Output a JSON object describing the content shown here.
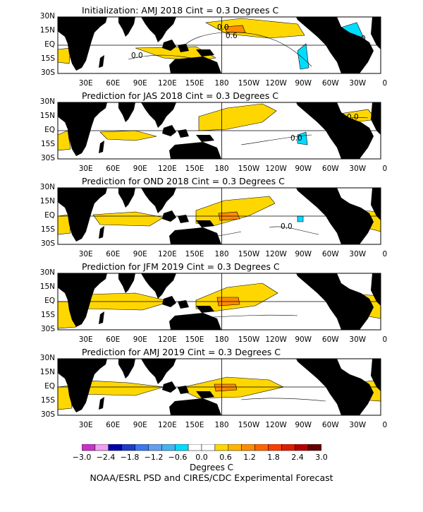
{
  "panels": [
    {
      "title": "Initialization: AMJ 2018  Cint = 0.3 Degrees C",
      "contour_labels": [
        "0.0",
        "0.0",
        "0.6",
        "0.0",
        "0.0"
      ]
    },
    {
      "title": "Prediction for JAS 2018  Cint = 0.3 Degrees C",
      "contour_labels": [
        "0.0",
        "0.0"
      ]
    },
    {
      "title": "Prediction for OND 2018  Cint = 0.3 Degrees C",
      "contour_labels": [
        "0.0"
      ]
    },
    {
      "title": "Prediction for JFM 2019  Cint = 0.3 Degrees C",
      "contour_labels": []
    },
    {
      "title": "Prediction for AMJ 2019  Cint = 0.3 Degrees C",
      "contour_labels": []
    }
  ],
  "lat_labels": [
    "30N",
    "15N",
    "EQ",
    "15S",
    "30S"
  ],
  "lon_labels": [
    "30E",
    "60E",
    "90E",
    "120E",
    "150E",
    "180",
    "150W",
    "120W",
    "90W",
    "60W",
    "30W",
    "0"
  ],
  "colorbar": {
    "colors": [
      "#c832c8",
      "#f0a0f0",
      "#0000aa",
      "#1e3cc8",
      "#3c78f0",
      "#64a0f0",
      "#46b4f0",
      "#00dcff",
      "#ffffff",
      "#ffffff",
      "#ffd700",
      "#ffb400",
      "#ff8c00",
      "#ff6400",
      "#ff3c00",
      "#dc1e00",
      "#b40000",
      "#640000"
    ],
    "labels": [
      "-3.0",
      "-2.4",
      "-1.8",
      "-1.2",
      "-0.6",
      "0.0",
      "0.6",
      "1.2",
      "1.8",
      "2.4",
      "3.0"
    ],
    "title": "Degrees C"
  },
  "credit": "NOAA/ESRL PSD and CIRES/CDC Experimental Forecast",
  "colors": {
    "warm": "#ffd700",
    "warm_strong": "#ff8c00",
    "cool": "#00dcff",
    "cool_strong": "#3c78f0",
    "land": "#000000"
  }
}
